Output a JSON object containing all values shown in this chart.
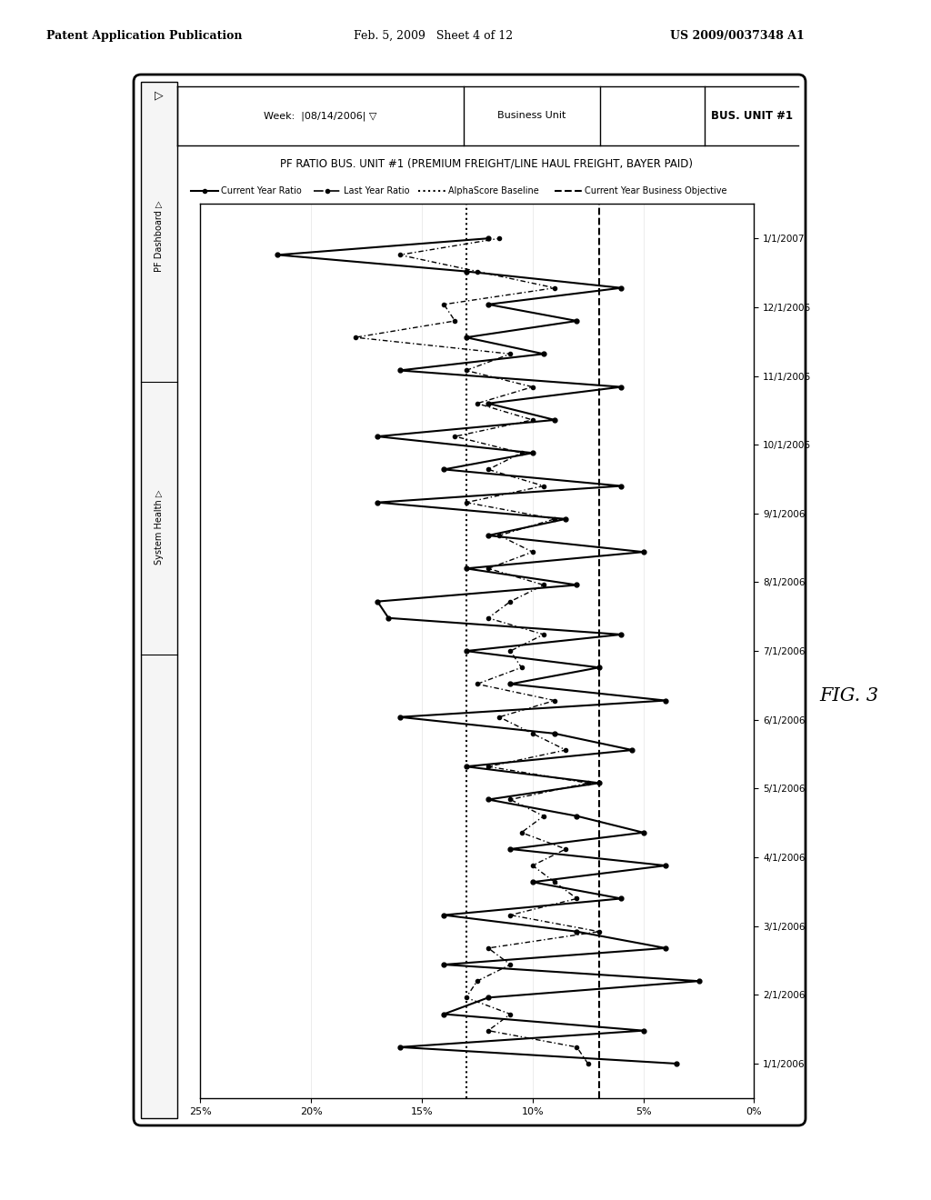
{
  "header_text_left": "Patent Application Publication",
  "header_text_mid": "Feb. 5, 2009   Sheet 4 of 12",
  "header_text_right": "US 2009/0037348 A1",
  "fig_label": "FIG. 3",
  "title": "PF RATIO BUS. UNIT #1 (PREMIUM FREIGHT/LINE HAUL FREIGHT, BAYER PAID)",
  "week_label": "Week:  |08/14/2006| ▽",
  "bus_unit_label": "Business Unit",
  "bus_unit_val": "BUS. UNIT #1",
  "legend_cy": "Current Year Ratio",
  "legend_ly": "Last Year Ratio",
  "legend_baseline": "AlphaScore Baseline",
  "legend_obj": "Current Year Business Objective",
  "x_labels": [
    "1/1/2006",
    "2/1/2006",
    "3/1/2006",
    "4/1/2006",
    "5/1/2006",
    "6/1/2006",
    "7/1/2006",
    "8/1/2006",
    "9/1/2006",
    "10/1/2006",
    "11/1/2006",
    "12/1/2006",
    "1/1/2007"
  ],
  "y_ticks": [
    0,
    5,
    10,
    15,
    20,
    25
  ],
  "y_tick_labels": [
    "0%",
    "5%",
    "10%",
    "15%",
    "20%",
    "25%"
  ],
  "alpha_score_baseline": 13.0,
  "business_objective": 7.0,
  "current_year_ratio": [
    3.5,
    16.0,
    5.0,
    14.0,
    12.0,
    2.5,
    14.0,
    4.0,
    8.0,
    14.0,
    6.0,
    10.0,
    4.0,
    11.0,
    5.0,
    8.0,
    12.0,
    7.0,
    13.0,
    5.5,
    9.0,
    16.0,
    4.0,
    11.0,
    7.0,
    13.0,
    6.0,
    16.5,
    17.0,
    8.0,
    13.0,
    5.0,
    12.0,
    8.5,
    17.0,
    6.0,
    14.0,
    10.0,
    17.0,
    9.0,
    12.0,
    6.0,
    16.0,
    9.5,
    13.0,
    8.0,
    12.0,
    6.0,
    13.0,
    21.5,
    12.0
  ],
  "last_year_ratio": [
    7.5,
    8.0,
    12.0,
    11.0,
    13.0,
    12.5,
    11.0,
    12.0,
    7.0,
    11.0,
    8.0,
    9.0,
    10.0,
    8.5,
    10.5,
    9.5,
    11.0,
    7.5,
    12.0,
    8.5,
    10.0,
    11.5,
    9.0,
    12.5,
    10.5,
    11.0,
    9.5,
    12.0,
    11.0,
    9.5,
    12.0,
    10.0,
    11.5,
    9.0,
    13.0,
    9.5,
    12.0,
    10.5,
    13.5,
    10.0,
    12.5,
    10.0,
    13.0,
    11.0,
    18.0,
    13.5,
    14.0,
    9.0,
    12.5,
    16.0,
    11.5
  ],
  "background_color": "#ffffff",
  "plot_bg_color": "#ffffff",
  "nav_pf": "PF Dashboard ▷",
  "nav_sh": "System Health ▷",
  "nav_top": "▷"
}
